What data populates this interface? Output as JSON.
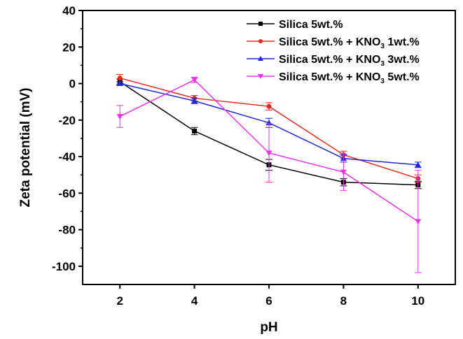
{
  "chart_data": {
    "type": "line",
    "xlabel": "pH",
    "ylabel": "Zeta potential (mV)",
    "xlim": [
      1,
      11
    ],
    "ylim": [
      -110,
      40
    ],
    "x_ticks": [
      2,
      4,
      6,
      8,
      10
    ],
    "y_ticks": [
      40,
      20,
      0,
      -20,
      -40,
      -60,
      -80,
      -100
    ],
    "legend_position": "top-right",
    "grid": false,
    "series": [
      {
        "name": "Silica 5wt.%",
        "legend": {
          "pre": "Silica 5wt.%",
          "sub": "",
          "post": ""
        },
        "color": "#000000",
        "marker": "square",
        "x": [
          2,
          4,
          6,
          8,
          10
        ],
        "y": [
          1,
          -26,
          -44.5,
          -54,
          -55.5
        ],
        "err": [
          1.5,
          2,
          3,
          2,
          2
        ]
      },
      {
        "name": "Silica 5wt.% + KNO3 1wt.%",
        "legend": {
          "pre": "Silica 5wt.% + KNO",
          "sub": "3",
          "post": " 1wt.%"
        },
        "color": "#e8291d",
        "marker": "circle",
        "x": [
          2,
          4,
          6,
          8,
          10
        ],
        "y": [
          3,
          -8,
          -12.5,
          -39,
          -52
        ],
        "err": [
          2,
          1.5,
          2,
          2,
          2
        ]
      },
      {
        "name": "Silica 5wt.% + KNO3 3wt.%",
        "legend": {
          "pre": "Silica 5wt.% + KNO",
          "sub": "3",
          "post": " 3wt.%"
        },
        "color": "#1f26d6",
        "marker": "triangle-up",
        "x": [
          2,
          4,
          6,
          8,
          10
        ],
        "y": [
          0,
          -9.5,
          -21.5,
          -41,
          -44.5
        ],
        "err": [
          1,
          1.5,
          2.5,
          2,
          1.5
        ]
      },
      {
        "name": "Silica 5wt.% + KNO3 5wt.%",
        "legend": {
          "pre": "Silica 5wt.% + KNO",
          "sub": "3",
          "post": " 5wt.%"
        },
        "color": "#ee33ee",
        "marker": "triangle-down",
        "x": [
          2,
          4,
          6,
          8,
          10
        ],
        "y": [
          -18,
          2,
          -38,
          -48.5,
          -75.5
        ],
        "err": [
          6,
          1.5,
          16,
          10,
          28
        ]
      }
    ]
  }
}
